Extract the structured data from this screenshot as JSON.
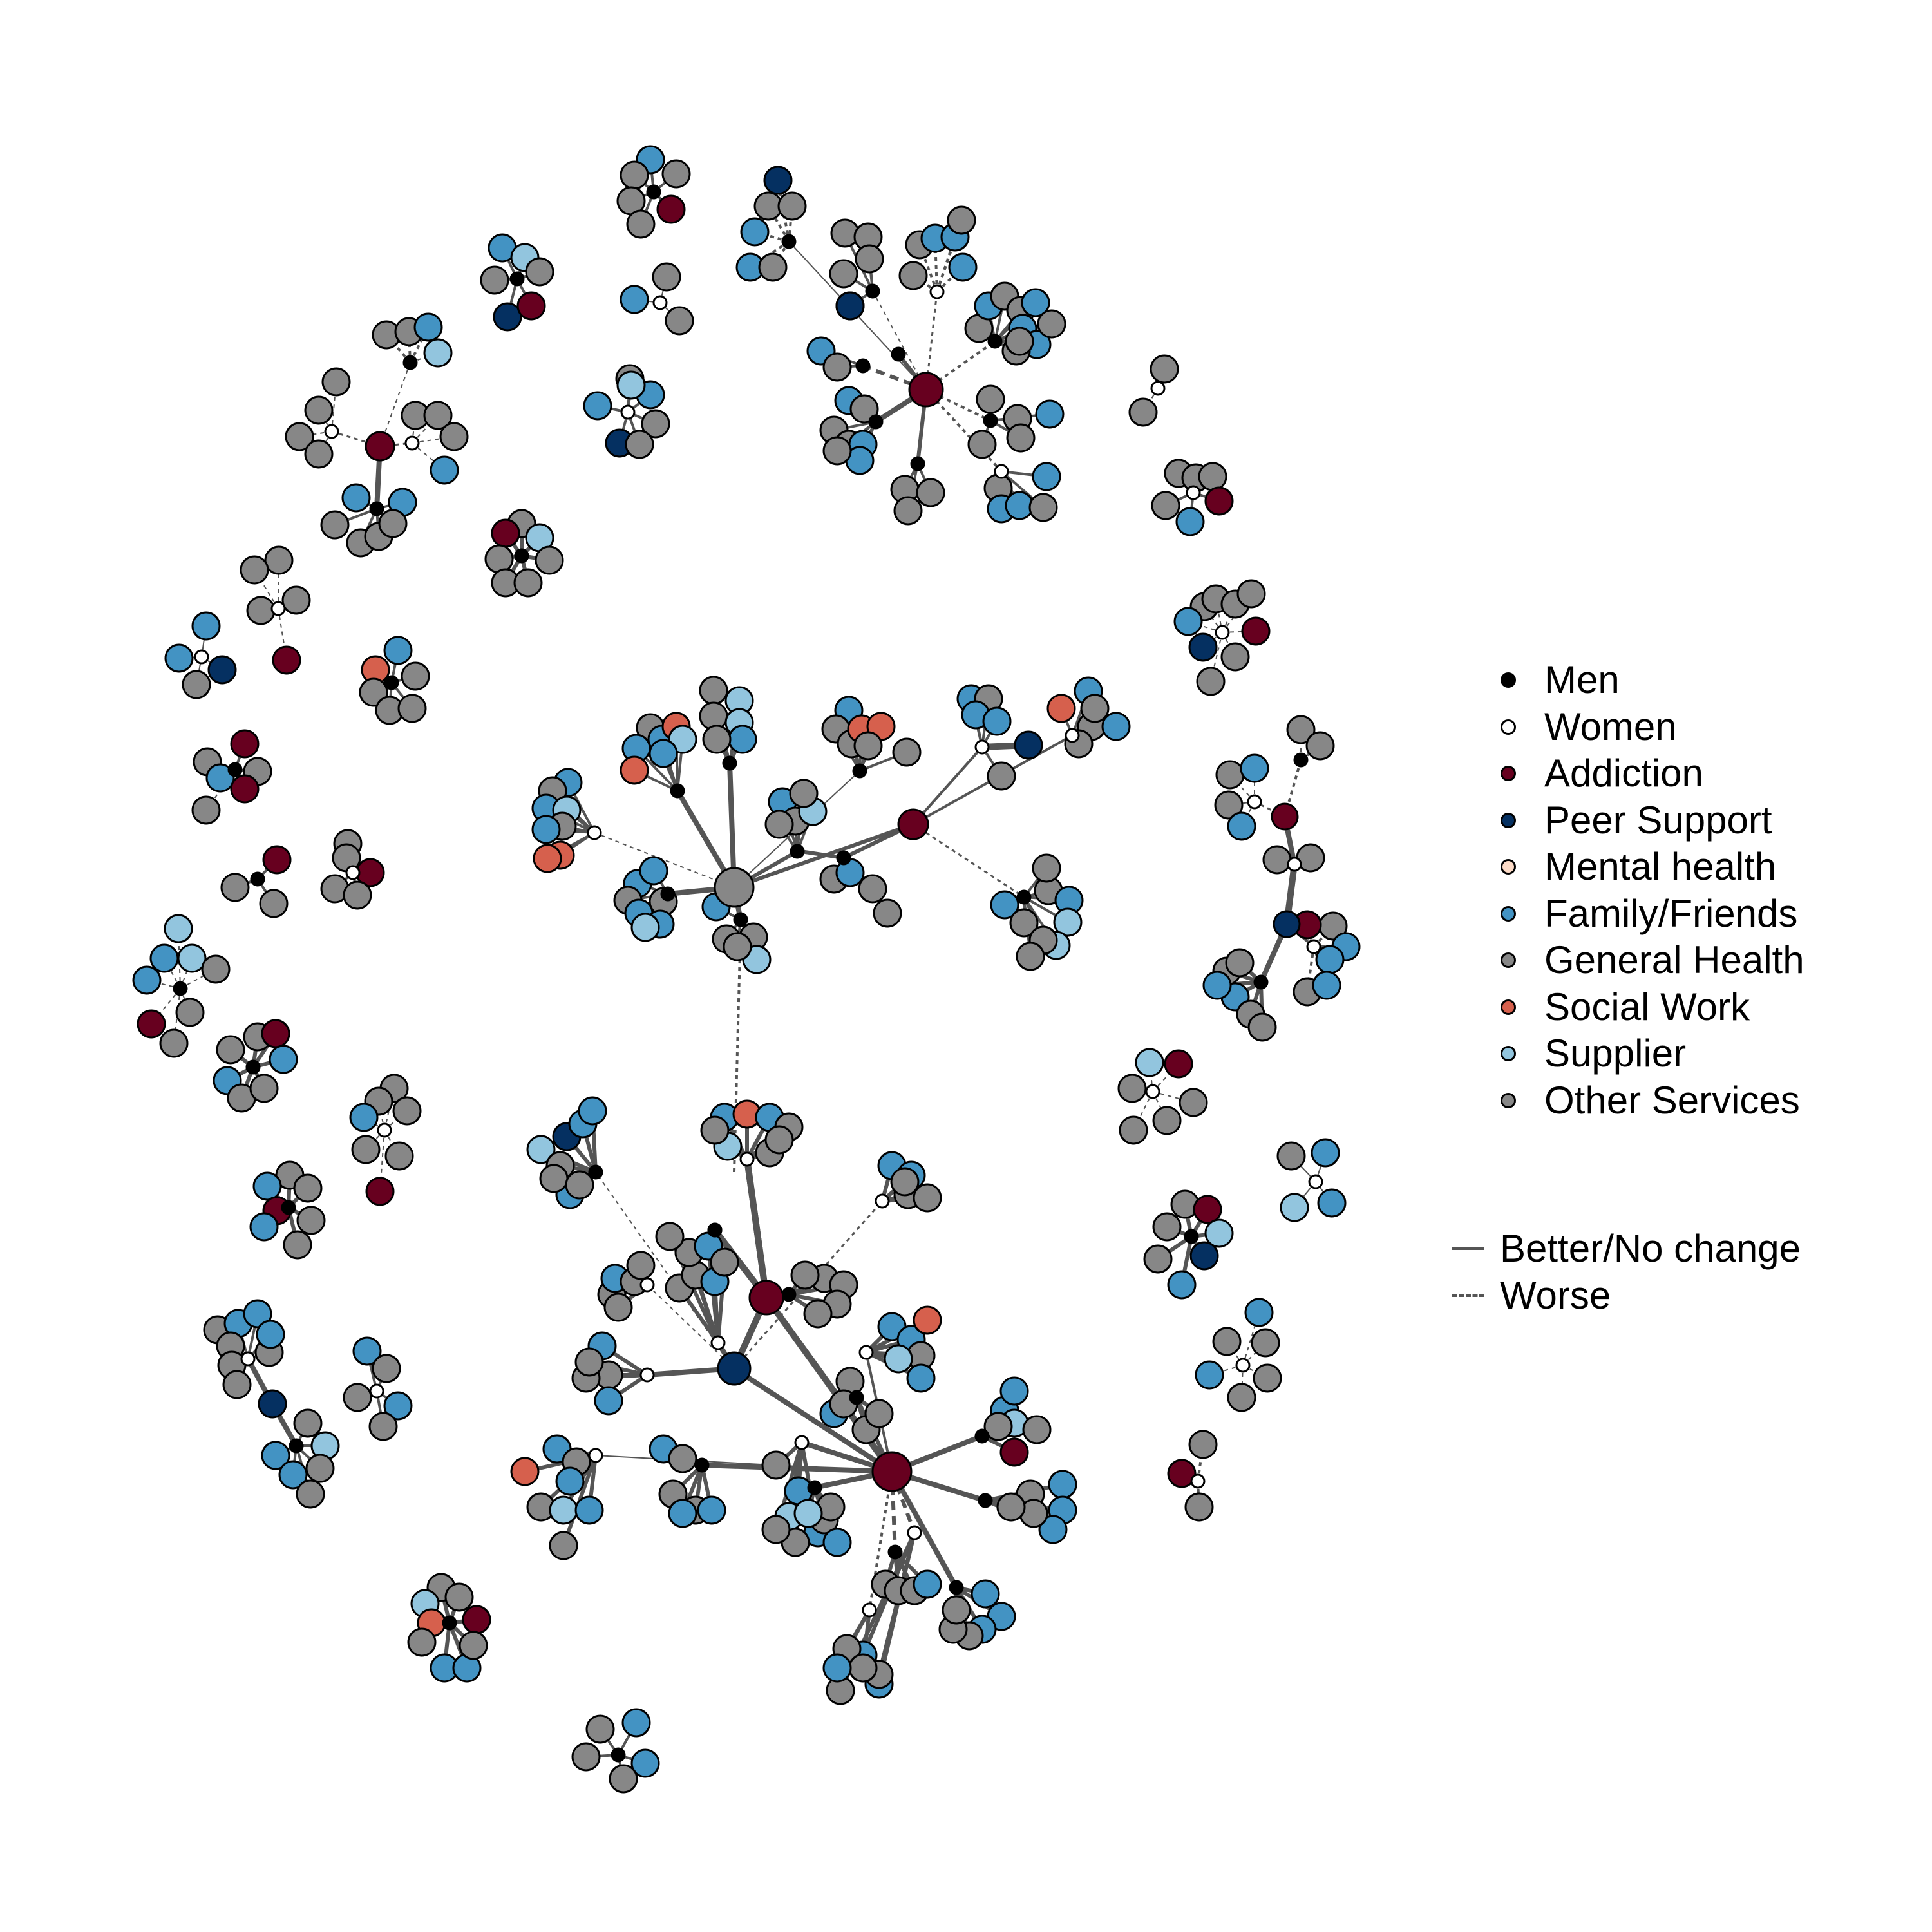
{
  "legend": {
    "node_types": [
      {
        "label": "Men",
        "color": "#000000"
      },
      {
        "label": "Women",
        "color": "#ffffff"
      },
      {
        "label": "Addiction",
        "color": "#67001f"
      },
      {
        "label": "Peer Support",
        "color": "#053061"
      },
      {
        "label": "Mental health",
        "color": "#fddbc7"
      },
      {
        "label": "Family/Friends",
        "color": "#4393c3"
      },
      {
        "label": "General Health",
        "color": "#878787"
      },
      {
        "label": "Social Work",
        "color": "#d6604d"
      },
      {
        "label": "Supplier",
        "color": "#92c5de"
      },
      {
        "label": "Other Services",
        "color": "#878787"
      }
    ],
    "edge_types": [
      {
        "label": "Better/No change",
        "style": "solid"
      },
      {
        "label": "Worse",
        "style": "dashed"
      }
    ]
  },
  "colors": {
    "edge": "#555555",
    "node_stroke": "#000000"
  }
}
